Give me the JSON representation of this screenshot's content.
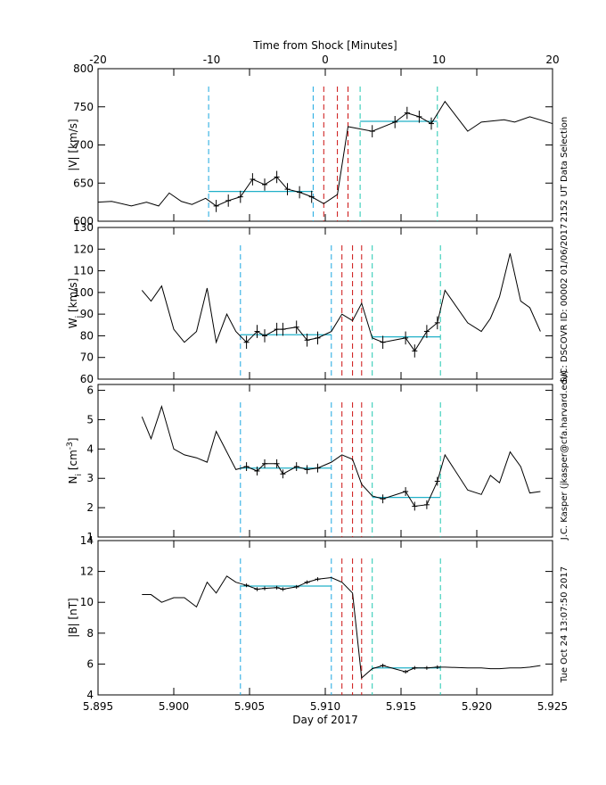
{
  "annotations": [
    "2152 UT Data Selection",
    "S/C: DSCOVR ID: 00002 01/06/2017",
    "J.C. Kasper (jkasper@cfa.harvard.edu)",
    "Tue Oct 24 13:07:50 2017"
  ],
  "chart_data": [
    {
      "type": "line",
      "x2label": "Time from Shock [Minutes]",
      "x2lim": [
        -20,
        20
      ],
      "x2ticks": [
        -20,
        -10,
        0,
        10,
        20
      ],
      "ylabel_parts": [
        {
          "text": "|V| [km/s]"
        }
      ],
      "xlim": [
        5.895,
        5.925
      ],
      "xticks": [
        5.895,
        {
          "value": 5.9,
          "label": "5.900"
        },
        5.905,
        {
          "value": 5.91,
          "label": "5.910"
        },
        5.915,
        {
          "value": 5.92,
          "label": "5.920"
        },
        5.925
      ],
      "ylim": [
        600,
        800
      ],
      "yticks": [
        600,
        650,
        700,
        750,
        800
      ],
      "color": "#000000",
      "x": [
        5.895,
        5.8959,
        5.8972,
        5.8982,
        5.899,
        5.8997,
        5.9005,
        5.9012,
        5.9021,
        5.9028,
        5.9036,
        5.9044,
        5.9052,
        5.906,
        5.9068,
        5.9075,
        5.9083,
        5.9091,
        5.9099,
        5.9108,
        5.9115,
        5.9131,
        5.9146,
        5.9154,
        5.9162,
        5.917,
        5.9179,
        5.9194,
        5.9203,
        5.9218,
        5.9225,
        5.9235,
        5.925
      ],
      "values": [
        625,
        626,
        620,
        625,
        620,
        637,
        626,
        622,
        630,
        620,
        627,
        632,
        655,
        648,
        658,
        642,
        638,
        632,
        623,
        635,
        724,
        718,
        730,
        742,
        737,
        728,
        757,
        718,
        730,
        733,
        730,
        737,
        728
      ],
      "errors": [
        null,
        null,
        null,
        null,
        null,
        null,
        null,
        null,
        null,
        8,
        8,
        8,
        8,
        8,
        8,
        8,
        8,
        8,
        null,
        null,
        null,
        8,
        8,
        8,
        8,
        8,
        null,
        null,
        null,
        null,
        null,
        null,
        null
      ],
      "vlines": [
        {
          "x": 5.9023,
          "color": "#1aa7e0"
        },
        {
          "x": 5.9092,
          "color": "#1aa7e0"
        },
        {
          "x": 5.9099,
          "color": "#cc1010"
        },
        {
          "x": 5.9108,
          "color": "#cc1010"
        },
        {
          "x": 5.9115,
          "color": "#cc1010"
        },
        {
          "x": 5.9123,
          "color": "#20c8b0"
        },
        {
          "x": 5.9174,
          "color": "#20c8b0"
        }
      ],
      "averages": [
        {
          "x": [
            5.9023,
            5.9092
          ],
          "value": 639,
          "color": "#20b0c8"
        },
        {
          "x": [
            5.9123,
            5.9174
          ],
          "value": 731,
          "color": "#20b0c8"
        }
      ]
    },
    {
      "type": "line",
      "ylabel_parts": [
        {
          "text": "W"
        },
        {
          "sub": "i"
        },
        {
          "text": " [km/s]"
        }
      ],
      "xlim": [
        5.895,
        5.925
      ],
      "xticks": [
        5.895,
        {
          "value": 5.9,
          "label": "5.900"
        },
        5.905,
        {
          "value": 5.91,
          "label": "5.910"
        },
        5.915,
        {
          "value": 5.92,
          "label": "5.920"
        },
        5.925
      ],
      "ylim": [
        60,
        130
      ],
      "yticks": [
        60,
        70,
        80,
        90,
        100,
        110,
        120,
        130
      ],
      "color": "#000000",
      "x": [
        5.8979,
        5.8985,
        5.8992,
        5.9,
        5.9007,
        5.9015,
        5.9022,
        5.9028,
        5.9035,
        5.9041,
        5.9048,
        5.9055,
        5.906,
        5.9068,
        5.9072,
        5.9081,
        5.9088,
        5.9095,
        5.9104,
        5.9111,
        5.9118,
        5.9124,
        5.9131,
        5.9138,
        5.9153,
        5.9159,
        5.9167,
        5.9174,
        5.9179,
        5.9194,
        5.9203,
        5.9209,
        5.9215,
        5.9222,
        5.9229,
        5.9235,
        5.9242
      ],
      "values": [
        101,
        96,
        103,
        83,
        77,
        82,
        102,
        77,
        90,
        82,
        77,
        82,
        80,
        83,
        83,
        84,
        78,
        79,
        82,
        90,
        87,
        95,
        79,
        77,
        79,
        73,
        82,
        86,
        101,
        86,
        82,
        88,
        98,
        118,
        96,
        93,
        82
      ],
      "errors": [
        null,
        null,
        null,
        null,
        null,
        null,
        null,
        null,
        null,
        null,
        3,
        3,
        3,
        3,
        3,
        3,
        3,
        3,
        null,
        null,
        null,
        null,
        null,
        3,
        3,
        3,
        3,
        3,
        null,
        null,
        null,
        null,
        null,
        null,
        null,
        null,
        null
      ],
      "vlines": [
        {
          "x": 5.9044,
          "color": "#1aa7e0"
        },
        {
          "x": 5.9104,
          "color": "#1aa7e0"
        },
        {
          "x": 5.9111,
          "color": "#cc1010"
        },
        {
          "x": 5.9118,
          "color": "#cc1010"
        },
        {
          "x": 5.9124,
          "color": "#cc1010"
        },
        {
          "x": 5.9131,
          "color": "#20c8b0"
        },
        {
          "x": 5.9176,
          "color": "#20c8b0"
        }
      ],
      "averages": [
        {
          "x": [
            5.9044,
            5.9104
          ],
          "value": 80.5,
          "color": "#20b0c8"
        },
        {
          "x": [
            5.9131,
            5.9176
          ],
          "value": 79.5,
          "color": "#20b0c8"
        }
      ]
    },
    {
      "type": "line",
      "ylabel_parts": [
        {
          "text": "N"
        },
        {
          "sub": "i"
        },
        {
          "text": " [cm"
        },
        {
          "sup": "-3"
        },
        {
          "text": "]"
        }
      ],
      "xlim": [
        5.895,
        5.925
      ],
      "xticks": [
        5.895,
        {
          "value": 5.9,
          "label": "5.900"
        },
        5.905,
        {
          "value": 5.91,
          "label": "5.910"
        },
        5.915,
        {
          "value": 5.92,
          "label": "5.920"
        },
        5.925
      ],
      "ylim": [
        1,
        6.2
      ],
      "yticks": [
        1,
        2,
        3,
        4,
        5,
        6
      ],
      "color": "#000000",
      "x": [
        5.8979,
        5.8985,
        5.8992,
        5.9,
        5.9007,
        5.9015,
        5.9022,
        5.9028,
        5.9035,
        5.9041,
        5.9048,
        5.9055,
        5.906,
        5.9068,
        5.9072,
        5.9081,
        5.9088,
        5.9095,
        5.9104,
        5.9111,
        5.9118,
        5.9124,
        5.9131,
        5.9138,
        5.9153,
        5.9159,
        5.9167,
        5.9174,
        5.9179,
        5.9194,
        5.9203,
        5.9209,
        5.9215,
        5.9222,
        5.9229,
        5.9235,
        5.9242
      ],
      "values": [
        5.1,
        4.35,
        5.45,
        4.0,
        3.8,
        3.7,
        3.55,
        4.6,
        3.9,
        3.3,
        3.4,
        3.25,
        3.5,
        3.5,
        3.15,
        3.4,
        3.3,
        3.35,
        3.55,
        3.8,
        3.65,
        2.8,
        2.4,
        2.3,
        2.55,
        2.05,
        2.1,
        2.9,
        3.8,
        2.6,
        2.45,
        3.1,
        2.85,
        3.9,
        3.4,
        2.5,
        2.55
      ],
      "errors": [
        null,
        null,
        null,
        null,
        null,
        null,
        null,
        null,
        null,
        null,
        0.15,
        0.15,
        0.15,
        0.15,
        0.15,
        0.15,
        0.15,
        0.15,
        null,
        null,
        null,
        null,
        null,
        0.15,
        0.15,
        0.15,
        0.15,
        0.15,
        null,
        null,
        null,
        null,
        null,
        null,
        null,
        null,
        null
      ],
      "vlines": [
        {
          "x": 5.9044,
          "color": "#1aa7e0"
        },
        {
          "x": 5.9104,
          "color": "#1aa7e0"
        },
        {
          "x": 5.9111,
          "color": "#cc1010"
        },
        {
          "x": 5.9118,
          "color": "#cc1010"
        },
        {
          "x": 5.9124,
          "color": "#cc1010"
        },
        {
          "x": 5.9131,
          "color": "#20c8b0"
        },
        {
          "x": 5.9176,
          "color": "#20c8b0"
        }
      ],
      "averages": [
        {
          "x": [
            5.9044,
            5.9104
          ],
          "value": 3.35,
          "color": "#20b0c8"
        },
        {
          "x": [
            5.9131,
            5.9176
          ],
          "value": 2.35,
          "color": "#20b0c8"
        }
      ]
    },
    {
      "type": "line",
      "ylabel_parts": [
        {
          "text": "|B| [nT]"
        }
      ],
      "xlabel": "Day of 2017",
      "xlim": [
        5.895,
        5.925
      ],
      "xticks": [
        5.895,
        {
          "value": 5.9,
          "label": "5.900"
        },
        5.905,
        {
          "value": 5.91,
          "label": "5.910"
        },
        5.915,
        {
          "value": 5.92,
          "label": "5.920"
        },
        5.925
      ],
      "ylim": [
        4,
        14
      ],
      "yticks": [
        4,
        6,
        8,
        10,
        12,
        14
      ],
      "color": "#000000",
      "x": [
        5.8979,
        5.8985,
        5.8992,
        5.9,
        5.9007,
        5.9015,
        5.9022,
        5.9028,
        5.9035,
        5.9041,
        5.9048,
        5.9055,
        5.906,
        5.9068,
        5.9072,
        5.9081,
        5.9088,
        5.9095,
        5.9104,
        5.9111,
        5.9118,
        5.9124,
        5.9131,
        5.9138,
        5.9153,
        5.9159,
        5.9167,
        5.9174,
        5.9179,
        5.9194,
        5.9203,
        5.9209,
        5.9215,
        5.9222,
        5.9229,
        5.9235,
        5.9242
      ],
      "values": [
        10.5,
        10.5,
        10.0,
        10.3,
        10.3,
        9.7,
        11.3,
        10.6,
        11.7,
        11.3,
        11.1,
        10.85,
        10.9,
        10.95,
        10.85,
        11.0,
        11.3,
        11.5,
        11.6,
        11.3,
        10.6,
        5.1,
        5.7,
        5.9,
        5.5,
        5.75,
        5.75,
        5.8,
        5.8,
        5.75,
        5.75,
        5.7,
        5.7,
        5.75,
        5.75,
        5.8,
        5.9
      ],
      "errors": [
        null,
        null,
        null,
        null,
        null,
        null,
        null,
        null,
        null,
        null,
        0.12,
        0.12,
        0.12,
        0.12,
        0.12,
        0.12,
        0.12,
        0.12,
        null,
        null,
        null,
        null,
        null,
        0.12,
        0.12,
        0.12,
        0.12,
        0.12,
        null,
        null,
        null,
        null,
        null,
        null,
        null,
        null,
        null
      ],
      "vlines": [
        {
          "x": 5.9044,
          "color": "#1aa7e0"
        },
        {
          "x": 5.9104,
          "color": "#1aa7e0"
        },
        {
          "x": 5.9111,
          "color": "#cc1010"
        },
        {
          "x": 5.9118,
          "color": "#cc1010"
        },
        {
          "x": 5.9124,
          "color": "#cc1010"
        },
        {
          "x": 5.9131,
          "color": "#20c8b0"
        },
        {
          "x": 5.9176,
          "color": "#20c8b0"
        }
      ],
      "averages": [
        {
          "x": [
            5.9044,
            5.9104
          ],
          "value": 11.05,
          "color": "#20b0c8"
        },
        {
          "x": [
            5.9131,
            5.9176
          ],
          "value": 5.75,
          "color": "#20b0c8"
        }
      ]
    }
  ]
}
